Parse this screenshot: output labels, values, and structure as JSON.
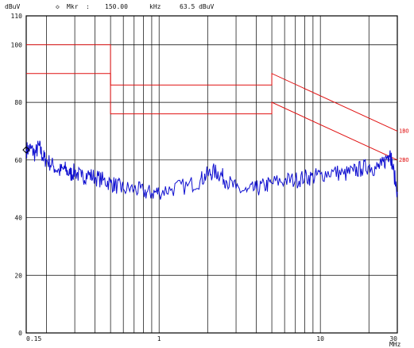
{
  "header": {
    "unit": "dBuV",
    "marker_label": "Mkr",
    "marker_sep": ":",
    "marker_freq": "150.00",
    "marker_freq_unit": "kHz",
    "marker_level": "63.5 dBuV"
  },
  "chart_data": {
    "type": "line",
    "title": "",
    "xlabel": "MHz",
    "ylabel": "dBuV",
    "xscale": "log",
    "xlim": [
      0.15,
      30
    ],
    "ylim": [
      0,
      110
    ],
    "grid": true,
    "y_ticks": [
      0,
      20,
      40,
      60,
      80,
      100,
      110
    ],
    "y_tick_labels": [
      "0",
      "20",
      "40",
      "60",
      "80",
      "100",
      "110"
    ],
    "x_tick_values": [
      0.15,
      1,
      10,
      30
    ],
    "x_tick_labels": [
      "0.15",
      "1",
      "10",
      "30"
    ],
    "x_unit_label": "MHz",
    "marker": {
      "x": 0.15,
      "y": 63.5
    },
    "limit_lines": [
      {
        "name": "",
        "color": "#e01010",
        "points": [
          [
            0.15,
            100
          ],
          [
            0.5,
            100
          ],
          [
            0.5,
            86
          ],
          [
            5,
            86
          ],
          [
            5,
            90
          ],
          [
            30,
            70
          ]
        ]
      },
      {
        "name": "",
        "color": "#e01010",
        "points": [
          [
            0.15,
            90
          ],
          [
            0.5,
            90
          ],
          [
            0.5,
            76
          ],
          [
            5,
            76
          ],
          [
            5,
            80
          ],
          [
            30,
            60
          ]
        ]
      }
    ],
    "limit_labels": [
      "1BO",
      "2BO"
    ],
    "series": [
      {
        "name": "",
        "color": "#1010d0",
        "points": [
          [
            0.15,
            63.5
          ],
          [
            0.16,
            64
          ],
          [
            0.17,
            62
          ],
          [
            0.18,
            65
          ],
          [
            0.19,
            61
          ],
          [
            0.2,
            60
          ],
          [
            0.22,
            58
          ],
          [
            0.24,
            56
          ],
          [
            0.26,
            57
          ],
          [
            0.28,
            55
          ],
          [
            0.3,
            56
          ],
          [
            0.33,
            54
          ],
          [
            0.36,
            55
          ],
          [
            0.4,
            54
          ],
          [
            0.45,
            53
          ],
          [
            0.5,
            52
          ],
          [
            0.55,
            51
          ],
          [
            0.6,
            50
          ],
          [
            0.7,
            50
          ],
          [
            0.8,
            49
          ],
          [
            0.9,
            48.5
          ],
          [
            1.0,
            49
          ],
          [
            1.2,
            50
          ],
          [
            1.5,
            51
          ],
          [
            1.8,
            53
          ],
          [
            2.0,
            55
          ],
          [
            2.2,
            56
          ],
          [
            2.4,
            55
          ],
          [
            2.6,
            53
          ],
          [
            3.0,
            50
          ],
          [
            3.5,
            49
          ],
          [
            4.0,
            50
          ],
          [
            4.5,
            51
          ],
          [
            5.0,
            52
          ],
          [
            6.0,
            53
          ],
          [
            7.0,
            53
          ],
          [
            8.0,
            54
          ],
          [
            9.0,
            54
          ],
          [
            10,
            55
          ],
          [
            12,
            56
          ],
          [
            14,
            55
          ],
          [
            16,
            56
          ],
          [
            18,
            57
          ],
          [
            20,
            58
          ],
          [
            22,
            57
          ],
          [
            24,
            58
          ],
          [
            26,
            61
          ],
          [
            27,
            63
          ],
          [
            28,
            58
          ],
          [
            30,
            49
          ]
        ]
      }
    ]
  }
}
